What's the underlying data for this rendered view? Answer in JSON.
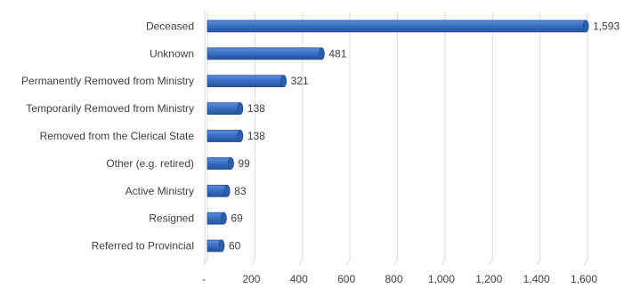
{
  "chart_data": {
    "type": "bar",
    "orientation": "horizontal",
    "categories": [
      "Deceased",
      "Unknown",
      "Permanently Removed from Ministry",
      "Temporarily Removed from Ministry",
      "Removed from the Clerical State",
      "Other (e.g. retired)",
      "Active Ministry",
      "Resigned",
      "Referred to Provincial"
    ],
    "values": [
      1593,
      481,
      321,
      138,
      138,
      99,
      83,
      69,
      60
    ],
    "value_labels": [
      "1,593",
      "481",
      "321",
      "138",
      "138",
      "99",
      "83",
      "69",
      "60"
    ],
    "xlim": [
      0,
      1600
    ],
    "x_ticks": [
      0,
      200,
      400,
      600,
      800,
      1000,
      1200,
      1400,
      1600
    ],
    "x_tick_labels": [
      "-",
      "200",
      "400",
      "600",
      "800",
      "1,000",
      "1,200",
      "1,400",
      "1,600"
    ],
    "grid": true,
    "legend": "none",
    "bar_color": "#3a6fc4",
    "bar_edge_color": "#1f4e96"
  }
}
